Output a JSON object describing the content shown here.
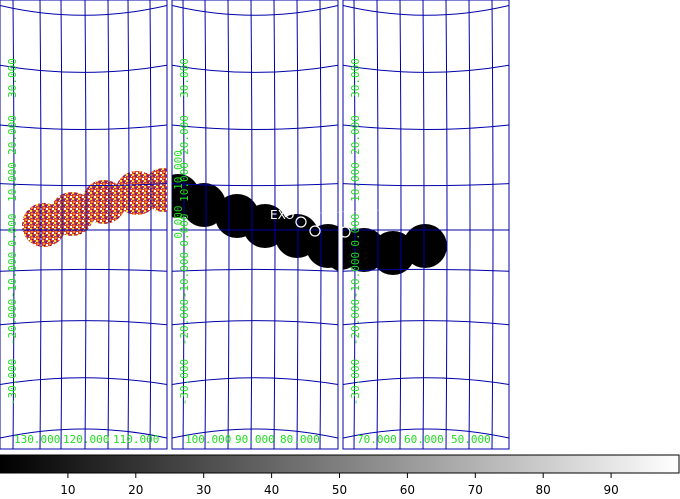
{
  "colors": {
    "background": "#000000",
    "grid": "#0000aa",
    "grid_label": "#22dd22",
    "frame_border": "#0000aa",
    "marker": "#ffffff"
  },
  "panels": [
    {
      "name": "left-panel",
      "ra_labels": [
        "130.000",
        "120.000",
        "110.000"
      ],
      "dec_labels": [
        "30.000",
        "20.000",
        "10.000",
        "0.000",
        "-10.000",
        "-20.000",
        "-30.000"
      ]
    },
    {
      "name": "middle-panel",
      "ra_labels": [
        "100.000",
        "90.000",
        "80.000"
      ],
      "dec_labels": [
        "30.000",
        "20.000",
        "10.000",
        "0.000",
        "-10.000",
        "-20.000",
        "-30.000"
      ],
      "extra_labels": [
        "10.000",
        "0.000"
      ]
    },
    {
      "name": "right-panel",
      "ra_labels": [
        "70.000",
        "60.000",
        "50.000"
      ],
      "dec_labels": [
        "30.000",
        "20.000",
        "10.000",
        "0.000",
        "-10.000",
        "-20.000",
        "-30.000"
      ]
    }
  ],
  "source_label": "EXO",
  "colorbar": {
    "ticks": [
      "10",
      "20",
      "30",
      "40",
      "50",
      "60",
      "70",
      "80",
      "90"
    ],
    "min": 0,
    "max": 100
  }
}
